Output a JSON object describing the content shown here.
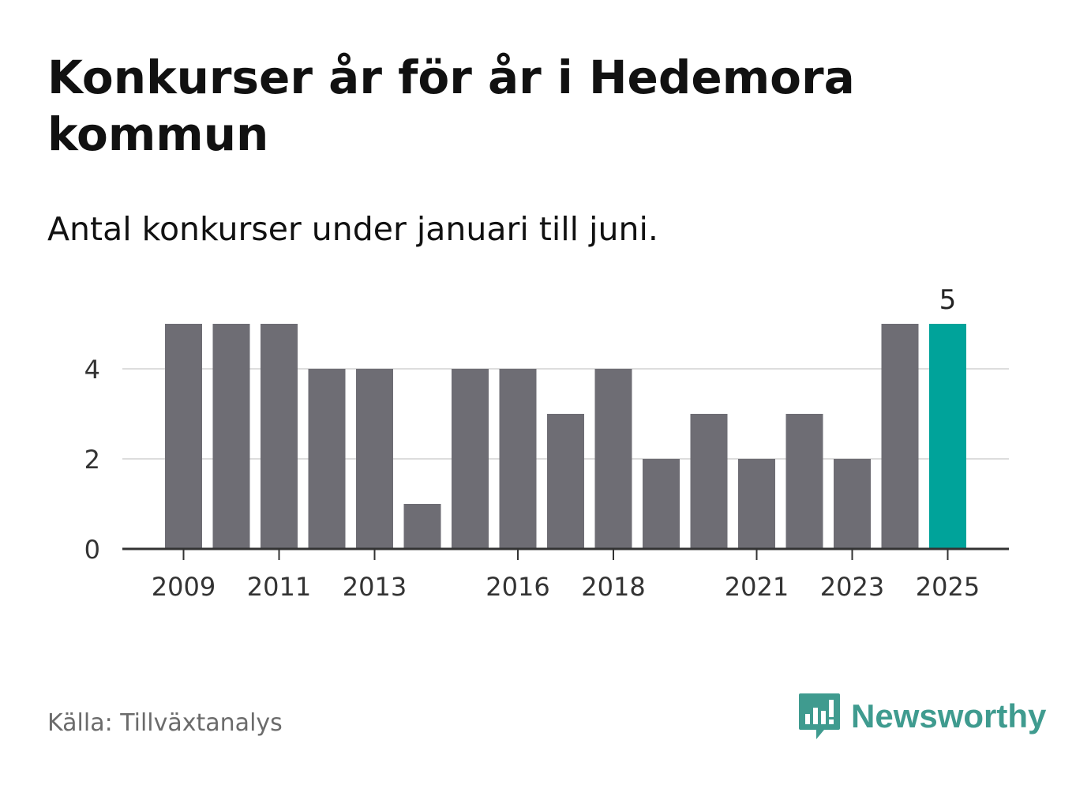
{
  "header": {
    "title": "Konkurser år för år i Hedemora kommun",
    "subtitle": "Antal konkurser under januari till juni."
  },
  "footer": {
    "source": "Källa: Tillväxtanalys",
    "brand": "Newsworthy",
    "brand_icon": "bar-chart-speech-bubble-icon"
  },
  "colors": {
    "bar": "#6e6d74",
    "highlight": "#00a39a",
    "grid": "#dddddd",
    "axis": "#333333",
    "brand": "#3f9b8f"
  },
  "chart_data": {
    "type": "bar",
    "title": "Konkurser år för år i Hedemora kommun",
    "subtitle": "Antal konkurser under januari till juni.",
    "categories": [
      "2009",
      "2010",
      "2011",
      "2012",
      "2013",
      "2014",
      "2015",
      "2016",
      "2017",
      "2018",
      "2019",
      "2020",
      "2021",
      "2022",
      "2023",
      "2024",
      "2025"
    ],
    "values": [
      5,
      5,
      5,
      4,
      4,
      1,
      4,
      4,
      3,
      4,
      2,
      3,
      2,
      3,
      2,
      5,
      5
    ],
    "x_tick_labels": [
      "2009",
      "2011",
      "2013",
      "2016",
      "2018",
      "2021",
      "2023",
      "2025"
    ],
    "y_ticks": [
      0,
      2,
      4
    ],
    "ylim": [
      0,
      5
    ],
    "highlight_category": "2025",
    "data_labels": [
      {
        "category": "2025",
        "text": "5"
      }
    ],
    "grid": "horizontal",
    "xlabel": "",
    "ylabel": ""
  }
}
